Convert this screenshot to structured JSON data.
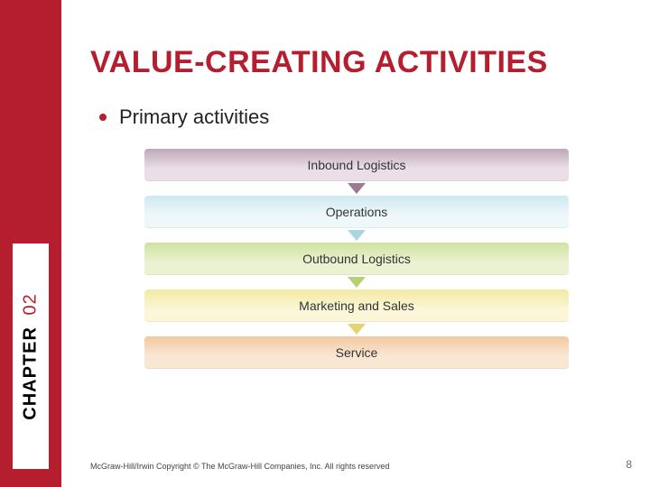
{
  "sidebar": {
    "label": "CHAPTER",
    "number": "02",
    "bg_color": "#b41e2e"
  },
  "title": "VALUE-CREATING ACTIVITIES",
  "title_color": "#b41e2e",
  "bullet": {
    "text": "Primary activities",
    "dot_color": "#b41e2e"
  },
  "diagram": {
    "type": "flowchart",
    "band_width": 470,
    "band_height": 36,
    "band_radius": 4,
    "font_size": 14,
    "arrow_width": 20,
    "arrow_height": 12,
    "items": [
      {
        "label": "Inbound Logistics",
        "grad_top": "#bfa7b5",
        "grad_bot": "#eadfe6",
        "arrow_color": "#9d7a94"
      },
      {
        "label": "Operations",
        "grad_top": "#cfe9ef",
        "grad_bot": "#eef8fa",
        "arrow_color": "#a9d6df"
      },
      {
        "label": "Outbound Logistics",
        "grad_top": "#cfe29f",
        "grad_bot": "#eaf2d1",
        "arrow_color": "#b6d174"
      },
      {
        "label": "Marketing and Sales",
        "grad_top": "#f4e9a3",
        "grad_bot": "#fbf6d7",
        "arrow_color": "#e6d26f"
      },
      {
        "label": "Service",
        "grad_top": "#f2c9a0",
        "grad_bot": "#f9e6d3",
        "arrow_color": null
      }
    ]
  },
  "footer": "McGraw-Hill/Irwin Copyright © The McGraw-Hill Companies, Inc. All rights reserved",
  "page_number": "8"
}
